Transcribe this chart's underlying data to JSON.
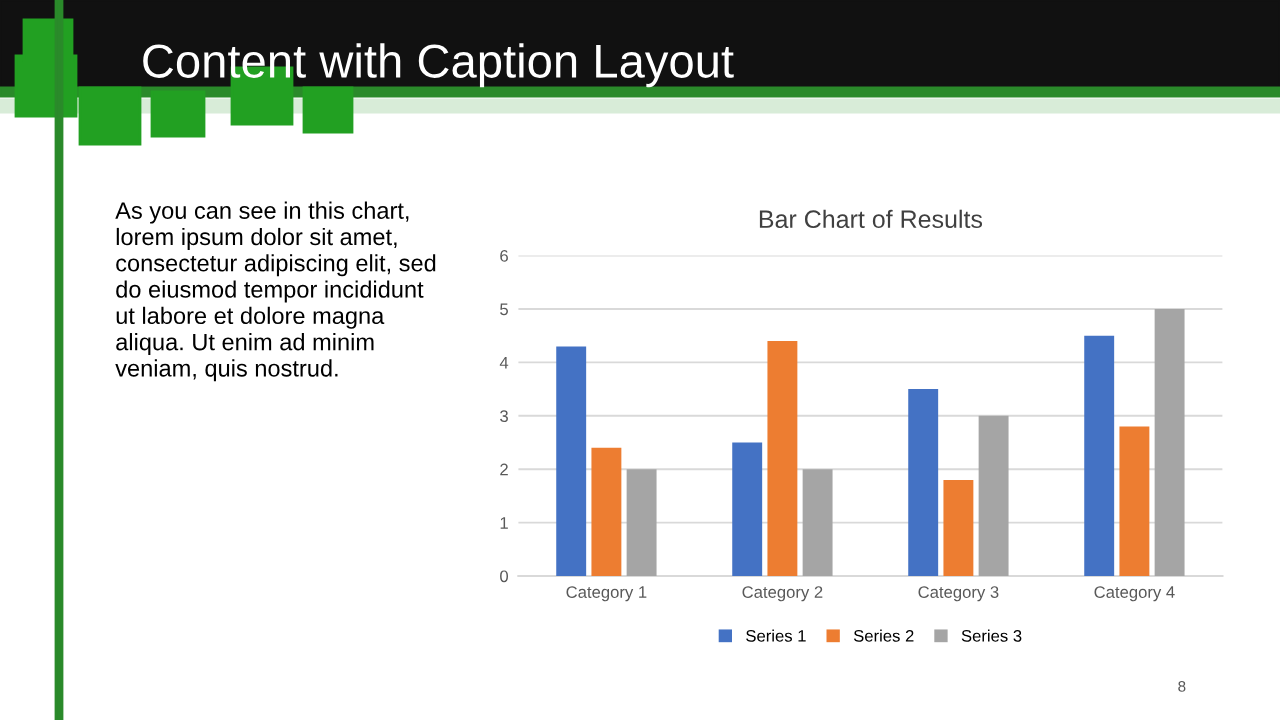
{
  "chart_data": {
    "type": "bar",
    "title": "Bar Chart of Results",
    "categories": [
      "Category 1",
      "Category 2",
      "Category 3",
      "Category 4"
    ],
    "series": [
      {
        "name": "Series 1",
        "color": "#4472c4",
        "values": [
          4.3,
          2.5,
          3.5,
          4.5
        ]
      },
      {
        "name": "Series 2",
        "color": "#ed7d31",
        "values": [
          2.4,
          4.4,
          1.8,
          2.8
        ]
      },
      {
        "name": "Series 3",
        "color": "#a5a5a5",
        "values": [
          2,
          2,
          3,
          5
        ]
      }
    ],
    "ylim": [
      0,
      6
    ],
    "yticks": [
      0,
      1,
      2,
      3,
      4,
      5,
      6
    ],
    "grid": "y",
    "legend": "bottom",
    "annotations": [
      "Content with Caption Layout",
      "As you can see in this chart,\nlorem ipsum dolor sit amet,\nconsectetur adipiscing elit, sed\ndo eiusmod tempor incididunt\nut labore et dolore magna\naliqua. Ut enim ad minim\nveniam, quis nostrud.",
      "8"
    ]
  }
}
